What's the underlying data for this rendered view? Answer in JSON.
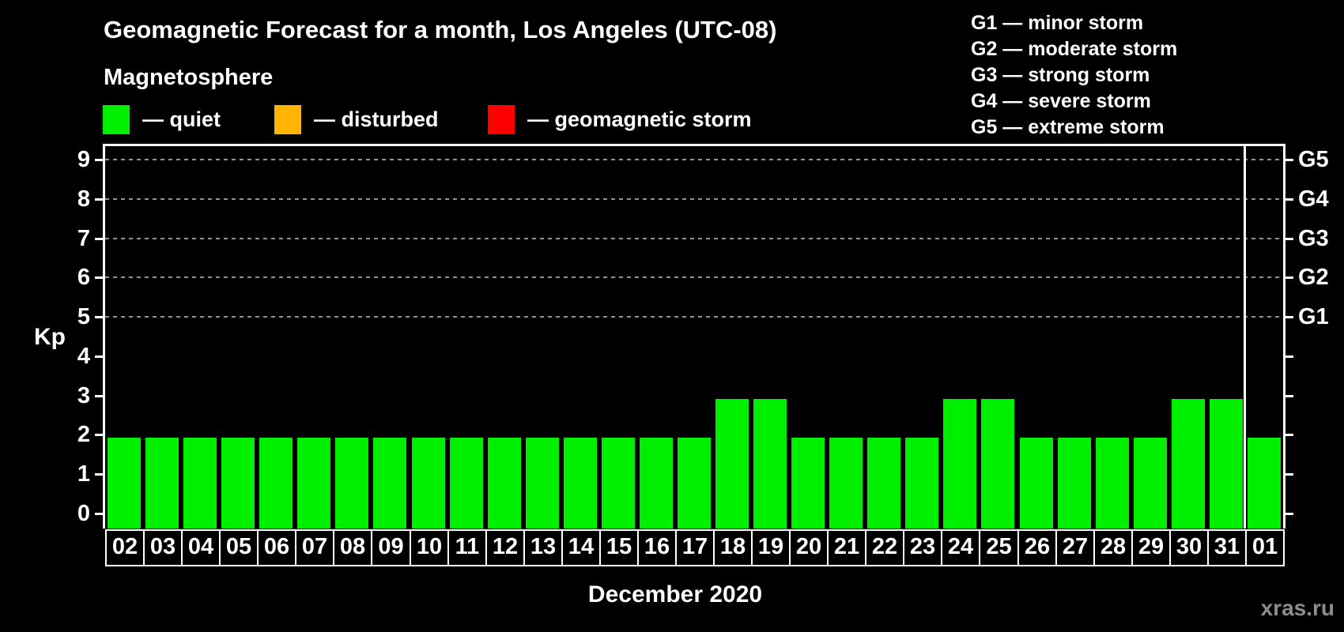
{
  "chart_data": {
    "type": "bar",
    "title": "Geomagnetic Forecast for a month, Los Angeles (UTC-08)",
    "categories": [
      "02",
      "03",
      "04",
      "05",
      "06",
      "07",
      "08",
      "09",
      "10",
      "11",
      "12",
      "13",
      "14",
      "15",
      "16",
      "17",
      "18",
      "19",
      "20",
      "21",
      "22",
      "23",
      "24",
      "25",
      "26",
      "27",
      "28",
      "29",
      "30",
      "31",
      "01"
    ],
    "values": [
      2,
      2,
      2,
      2,
      2,
      2,
      2,
      2,
      2,
      2,
      2,
      2,
      2,
      2,
      2,
      2,
      3,
      3,
      2,
      2,
      2,
      2,
      3,
      3,
      2,
      2,
      2,
      2,
      3,
      3,
      2
    ],
    "xlabel": "December 2020",
    "ylabel": "Kp",
    "ylim": [
      -0.35,
      9.4
    ],
    "yticks": [
      0,
      1,
      2,
      3,
      4,
      5,
      6,
      7,
      8,
      9
    ],
    "gridlines_at": [
      5,
      6,
      7,
      8,
      9
    ],
    "grid": "dashed horizontal, gray",
    "right_axis_labels": [
      {
        "kp": 5,
        "label": "G1"
      },
      {
        "kp": 6,
        "label": "G2"
      },
      {
        "kp": 7,
        "label": "G3"
      },
      {
        "kp": 8,
        "label": "G4"
      },
      {
        "kp": 9,
        "label": "G5"
      }
    ],
    "bar_color": "#00ee00",
    "separator_after_index": 29,
    "legend_position": "top"
  },
  "legend": {
    "title": "Magnetosphere",
    "items": [
      {
        "label": "— quiet",
        "color": "#00ee00"
      },
      {
        "label": "— disturbed",
        "color": "#ffb400"
      },
      {
        "label": "— geomagnetic storm",
        "color": "#ff0000"
      }
    ]
  },
  "storm_scale": {
    "items": [
      "G1 — minor storm",
      "G2 — moderate storm",
      "G3 — strong storm",
      "G4 — severe storm",
      "G5 — extreme storm"
    ]
  },
  "watermark": "xras.ru"
}
